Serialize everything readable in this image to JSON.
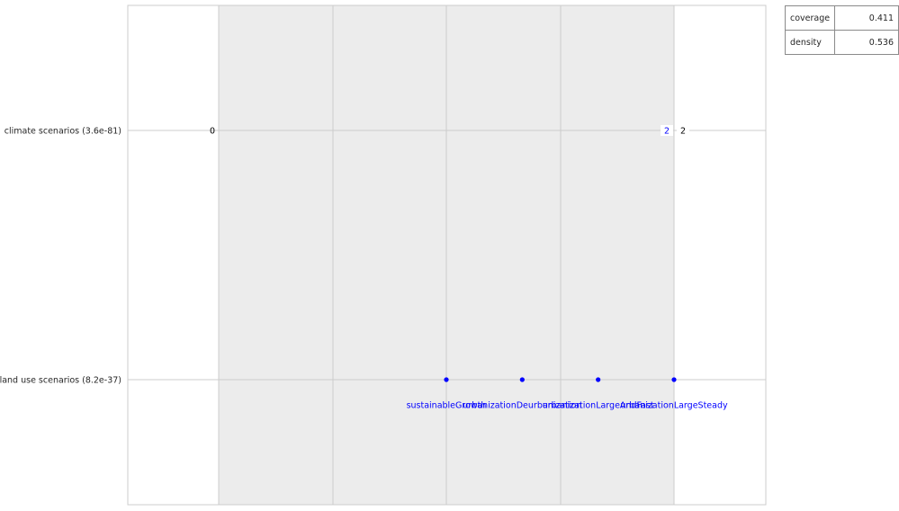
{
  "chart_data": {
    "type": "scatter",
    "rows": [
      {
        "label": "climate scenarios (3.6e-81)",
        "restricted_min": 2,
        "restricted_max": 2,
        "range_min": 0,
        "range_max": 2
      },
      {
        "label": "land use scenarios (8.2e-37)",
        "restricted": [
          "sustainableGrowth",
          "urbanizationDeurbanization",
          "urbanizationLargeAndFast",
          "urbanizationLargeSteady"
        ]
      }
    ],
    "stats": [
      {
        "name": "coverage",
        "value": "0.411"
      },
      {
        "name": "density",
        "value": "0.536"
      }
    ],
    "colors": {
      "restricted": "#0000ff",
      "bands": "#ececec",
      "grid": "#cccccc",
      "text": "#262626"
    }
  }
}
